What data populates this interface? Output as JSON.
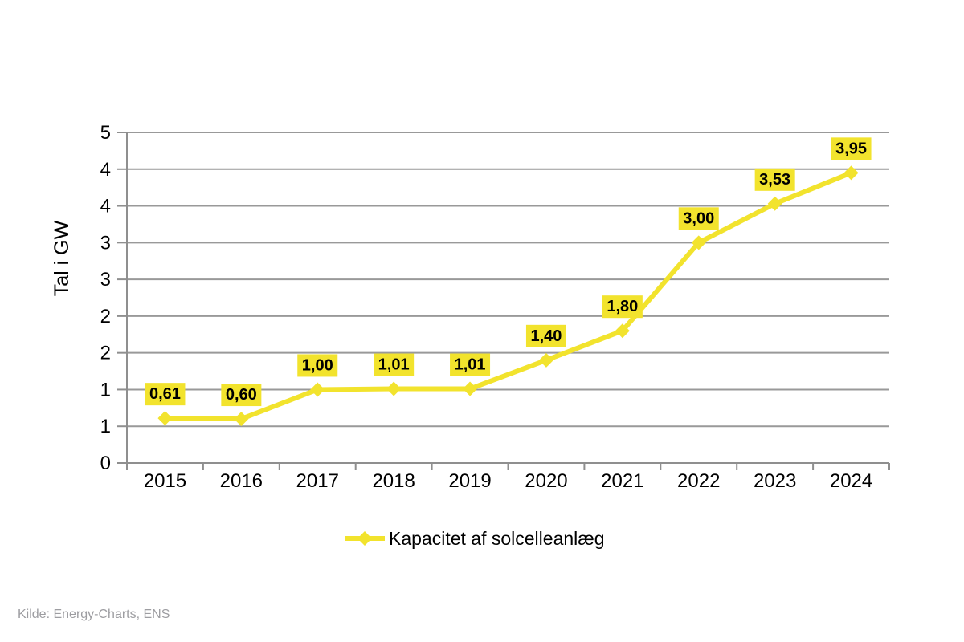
{
  "chart_data": {
    "type": "line",
    "title": "",
    "x": [
      "2015",
      "2016",
      "2017",
      "2018",
      "2019",
      "2020",
      "2021",
      "2022",
      "2023",
      "2024"
    ],
    "series": [
      {
        "name": "Kapacitet af solcelleanlæg",
        "values": [
          0.61,
          0.6,
          1.0,
          1.01,
          1.01,
          1.4,
          1.8,
          3.0,
          3.53,
          3.95
        ],
        "point_labels": [
          "0,61",
          "0,60",
          "1,00",
          "1,01",
          "1,01",
          "1,40",
          "1,80",
          "3,00",
          "3,53",
          "3,95"
        ],
        "color": "#F2E32D",
        "marker": "diamond"
      }
    ],
    "xlabel": "",
    "ylabel": "Tal i GW",
    "ylim": [
      0,
      4.5
    ],
    "ytick_step": 0.5,
    "ytick_labels_bottom_to_top": [
      "0",
      "1",
      "1",
      "2",
      "2",
      "3",
      "3",
      "4",
      "4",
      "5"
    ],
    "grid": "horizontal",
    "legend_position": "bottom-center",
    "data_labels_shown": true
  },
  "colors": {
    "background": "#FFFFFF",
    "series_yellow": "#F2E32D",
    "gridline": "#999999",
    "axis": "#8F8F8F",
    "tick_text": "#000000",
    "data_label_bg": "#F2E32D",
    "data_label_text": "#000000",
    "source_text": "#9D9DA1"
  },
  "source": {
    "text": "Kilde: Energy-Charts, ENS"
  }
}
